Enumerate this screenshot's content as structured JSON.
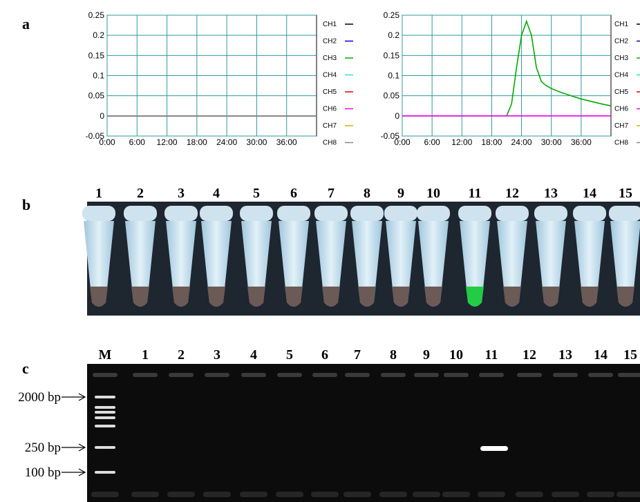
{
  "panel_labels": [
    "a",
    "b",
    "c"
  ],
  "chart_data": [
    {
      "type": "line",
      "xlim": [
        0,
        42
      ],
      "ylim": [
        -0.05,
        0.25
      ],
      "xticks": [
        {
          "value": 0,
          "label": "0:00"
        },
        {
          "value": 6,
          "label": "6:00"
        },
        {
          "value": 12,
          "label": "12:00"
        },
        {
          "value": 18,
          "label": "18:00"
        },
        {
          "value": 24,
          "label": "24:00"
        },
        {
          "value": 30,
          "label": "30:00"
        },
        {
          "value": 36,
          "label": "36:00"
        }
      ],
      "yticks": [
        -0.05,
        0,
        0.05,
        0.1,
        0.15,
        0.2,
        0.25
      ],
      "grid": true,
      "series": [
        {
          "name": "CH1",
          "color": "#000000",
          "x": [
            0,
            42
          ],
          "values": [
            0,
            0
          ]
        },
        {
          "name": "CH2",
          "color": "#0000cc",
          "x": [
            0,
            42
          ],
          "values": [
            0,
            0
          ]
        },
        {
          "name": "CH3",
          "color": "#00aa00",
          "x": [
            0,
            42
          ],
          "values": [
            0,
            0
          ]
        },
        {
          "name": "CH4",
          "color": "#33dddd",
          "x": [
            0,
            42
          ],
          "values": [
            0,
            0
          ]
        },
        {
          "name": "CH5",
          "color": "#dd0000",
          "x": [
            0,
            42
          ],
          "values": [
            0,
            0
          ]
        },
        {
          "name": "CH6",
          "color": "#ee00ee",
          "x": [
            0,
            42
          ],
          "values": [
            0,
            0
          ]
        },
        {
          "name": "CH7",
          "color": "#c8b400",
          "x": [
            0,
            42
          ],
          "values": [
            0,
            0
          ]
        },
        {
          "name": "CH8",
          "color": "#888888",
          "x": [
            0,
            42
          ],
          "values": [
            0,
            0
          ]
        }
      ]
    },
    {
      "type": "line",
      "xlim": [
        0,
        42
      ],
      "ylim": [
        -0.05,
        0.25
      ],
      "xticks": [
        {
          "value": 0,
          "label": "0:00"
        },
        {
          "value": 6,
          "label": "6:00"
        },
        {
          "value": 12,
          "label": "12:00"
        },
        {
          "value": 18,
          "label": "18:00"
        },
        {
          "value": 24,
          "label": "24:00"
        },
        {
          "value": 30,
          "label": "30:00"
        },
        {
          "value": 36,
          "label": "36:00"
        }
      ],
      "yticks": [
        -0.05,
        0,
        0.05,
        0.1,
        0.15,
        0.2,
        0.25
      ],
      "grid": true,
      "series": [
        {
          "name": "CH1",
          "color": "#000000",
          "x": [
            0,
            42
          ],
          "values": [
            null,
            null
          ]
        },
        {
          "name": "CH2",
          "color": "#0000cc",
          "x": [
            0,
            42
          ],
          "values": [
            null,
            null
          ]
        },
        {
          "name": "CH3",
          "color": "#00aa00",
          "x": [
            0,
            21,
            22,
            23,
            24,
            25,
            26,
            27,
            28,
            29,
            30,
            32,
            34,
            36,
            38,
            40,
            42
          ],
          "values": [
            0,
            0,
            0.03,
            0.12,
            0.2,
            0.235,
            0.2,
            0.12,
            0.085,
            0.075,
            0.068,
            0.058,
            0.05,
            0.042,
            0.036,
            0.03,
            0.025
          ]
        },
        {
          "name": "CH4",
          "color": "#33dddd",
          "x": [
            0,
            42
          ],
          "values": [
            null,
            null
          ]
        },
        {
          "name": "CH5",
          "color": "#dd0000",
          "x": [
            0,
            42
          ],
          "values": [
            null,
            null
          ]
        },
        {
          "name": "CH6",
          "color": "#ee00ee",
          "x": [
            0,
            42
          ],
          "values": [
            0,
            0
          ]
        },
        {
          "name": "CH7",
          "color": "#c8b400",
          "x": [
            0,
            42
          ],
          "values": [
            null,
            null
          ]
        },
        {
          "name": "CH8",
          "color": "#888888",
          "x": [
            0,
            42
          ],
          "values": [
            null,
            null
          ]
        }
      ]
    }
  ],
  "tube_labels": [
    "1",
    "2",
    "3",
    "4",
    "5",
    "6",
    "7",
    "8",
    "9",
    "10",
    "11",
    "12",
    "13",
    "14",
    "15"
  ],
  "gel": {
    "lanes": [
      "M",
      "1",
      "2",
      "3",
      "4",
      "5",
      "6",
      "7",
      "8",
      "9",
      "10",
      "11",
      "12",
      "13",
      "14",
      "15"
    ],
    "markers": [
      "2000 bp",
      "250 bp",
      "100 bp"
    ]
  }
}
